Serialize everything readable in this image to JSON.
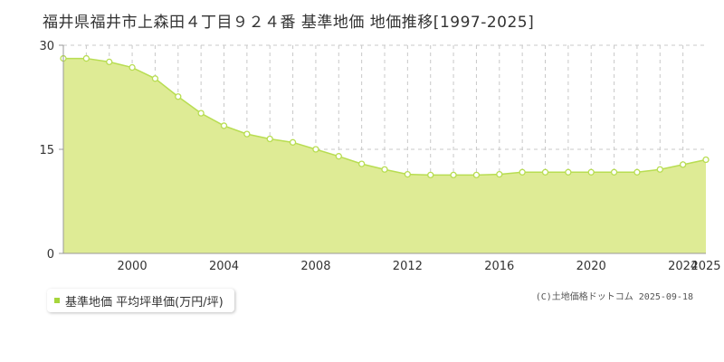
{
  "title": "福井県福井市上森田４丁目９２４番 基準地価 地価推移[1997-2025]",
  "legend": {
    "label": "基準地価 平均坪単価(万円/坪)"
  },
  "copyright": "(C)土地価格ドットコム 2025-09-18",
  "colors": {
    "fill": "#deeb95",
    "line": "#b8dd52",
    "marker_fill": "#ffffff",
    "grid": "#c8c8c8",
    "legend_swatch": "#a6d53c"
  },
  "chart_data": {
    "type": "area",
    "title": "",
    "xlabel": "",
    "ylabel": "",
    "xlim": [
      1997,
      2025
    ],
    "ylim": [
      0,
      30
    ],
    "y_ticks": [
      0,
      15,
      30
    ],
    "x_tick_labels": [
      2000,
      2004,
      2008,
      2012,
      2016,
      2020,
      2024,
      2025
    ],
    "grid": true,
    "series": [
      {
        "x": [
          1997,
          1998,
          1999,
          2000,
          2001,
          2002,
          2003,
          2004,
          2005,
          2006,
          2007,
          2008,
          2009,
          2010,
          2011,
          2012,
          2013,
          2014,
          2015,
          2016,
          2017,
          2018,
          2019,
          2020,
          2021,
          2022,
          2023,
          2024,
          2025
        ],
        "values": [
          28.1,
          28.1,
          27.6,
          26.8,
          25.2,
          22.6,
          20.2,
          18.4,
          17.2,
          16.5,
          16.0,
          15.0,
          14.0,
          12.9,
          12.1,
          11.4,
          11.3,
          11.3,
          11.3,
          11.4,
          11.7,
          11.7,
          11.7,
          11.7,
          11.7,
          11.7,
          12.1,
          12.8,
          13.5
        ]
      }
    ]
  }
}
